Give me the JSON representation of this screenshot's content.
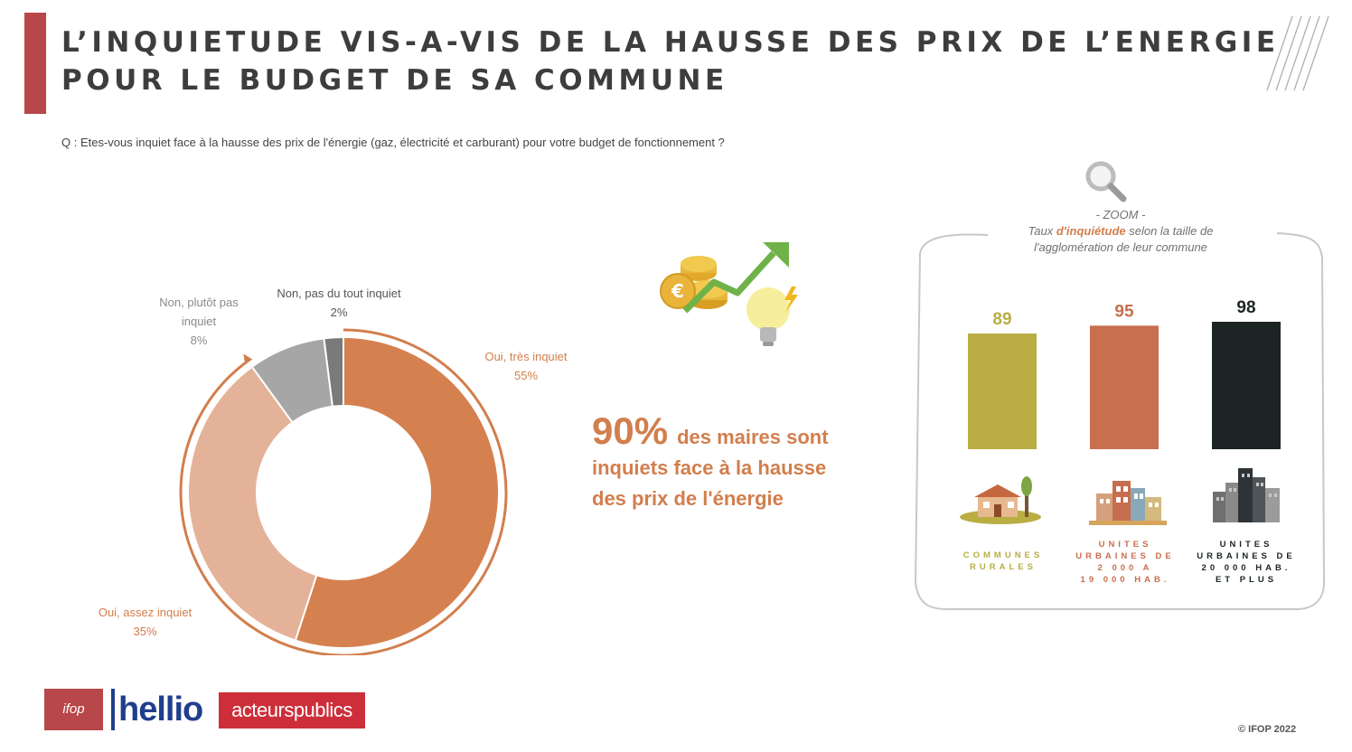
{
  "header": {
    "title_line1": "L’INQUIETUDE VIS-A-VIS DE LA HAUSSE DES PRIX DE L’ENERGIE",
    "title_line2": "POUR LE BUDGET DE SA COMMUNE",
    "question": "Q : Etes-vous inquiet face à la hausse des prix de l'énergie (gaz, électricité et carburant) pour votre budget de fonctionnement ?"
  },
  "chart_data": [
    {
      "type": "pie",
      "categories": [
        "Oui, très inquiet",
        "Oui, assez inquiet",
        "Non, plutôt pas inquiet",
        "Non, pas du tout inquiet"
      ],
      "values": [
        55,
        35,
        8,
        2
      ],
      "value_labels": [
        "55%",
        "35%",
        "8%",
        "2%"
      ],
      "colors": [
        "#d5804f",
        "#e4b299",
        "#a6a6a6",
        "#7a7a7a"
      ],
      "donut": true
    },
    {
      "type": "bar",
      "categories": [
        "COMMUNES RURALES",
        "UNITES URBAINES DE 2 000 A 19 000 HAB.",
        "UNITES URBAINES DE 20 000 HAB. ET PLUS"
      ],
      "values": [
        89,
        95,
        98
      ],
      "value_labels": [
        "89",
        "95",
        "98"
      ],
      "colors": [
        "#b9ad44",
        "#c96e4f",
        "#1c2424"
      ]
    }
  ],
  "donut_labels": {
    "tres": {
      "line1": "Oui, très inquiet",
      "pct": "55%"
    },
    "assez": {
      "line1": "Oui, assez inquiet",
      "pct": "35%"
    },
    "plutot": {
      "line1": "Non, plutôt pas",
      "line2": "inquiet",
      "pct": "8%"
    },
    "pas": {
      "line1": "Non, pas du tout inquiet",
      "pct": "2%"
    }
  },
  "kpi": {
    "big": "90%",
    "text1": "des maires sont",
    "text2": "inquiets face à la hausse",
    "text3": "des prix de l'énergie"
  },
  "zoom": {
    "label": "- ZOOM -",
    "line1_pre": "Taux ",
    "line1_accent": "d'inquiétude",
    "line1_post": " selon la taille de",
    "line2": "l'agglomération de leur commune"
  },
  "bar_categories_display": [
    [
      "COMMUNES",
      "RURALES"
    ],
    [
      "UNITES",
      "URBAINES DE",
      "2 000 A",
      "19 000 HAB."
    ],
    [
      "UNITES",
      "URBAINES DE",
      "20 000 HAB.",
      "ET PLUS"
    ]
  ],
  "icons": [
    "euro-coins-icon",
    "trend-arrow-icon",
    "lightbulb-icon",
    "magnifier-icon",
    "rural-house-icon",
    "town-buildings-icon",
    "city-skyline-icon"
  ],
  "footer": {
    "logo_ifop": "ifop",
    "logo_hellio": "hellio",
    "logo_ap": "acteurspublics",
    "copyright": "© IFOP 2022"
  }
}
